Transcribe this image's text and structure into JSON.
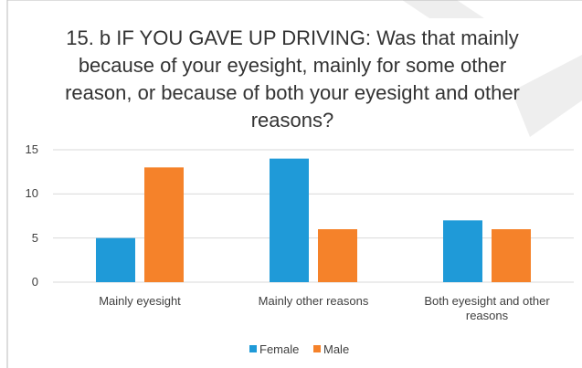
{
  "chart_data": {
    "type": "bar",
    "title": "15. b IF YOU GAVE UP DRIVING: Was that mainly because of your eyesight, mainly for some other reason, or because of both your eyesight and other reasons?",
    "categories": [
      "Mainly eyesight",
      "Mainly other reasons",
      "Both eyesight and other reasons"
    ],
    "series": [
      {
        "name": "Female",
        "color": "#1f9ad8",
        "values": [
          5,
          14,
          7
        ]
      },
      {
        "name": "Male",
        "color": "#f5822a",
        "values": [
          13,
          6,
          6
        ]
      }
    ],
    "ylim": [
      0,
      15
    ],
    "yticks": [
      0,
      5,
      10,
      15
    ],
    "grid": true,
    "legend": "bottom"
  }
}
